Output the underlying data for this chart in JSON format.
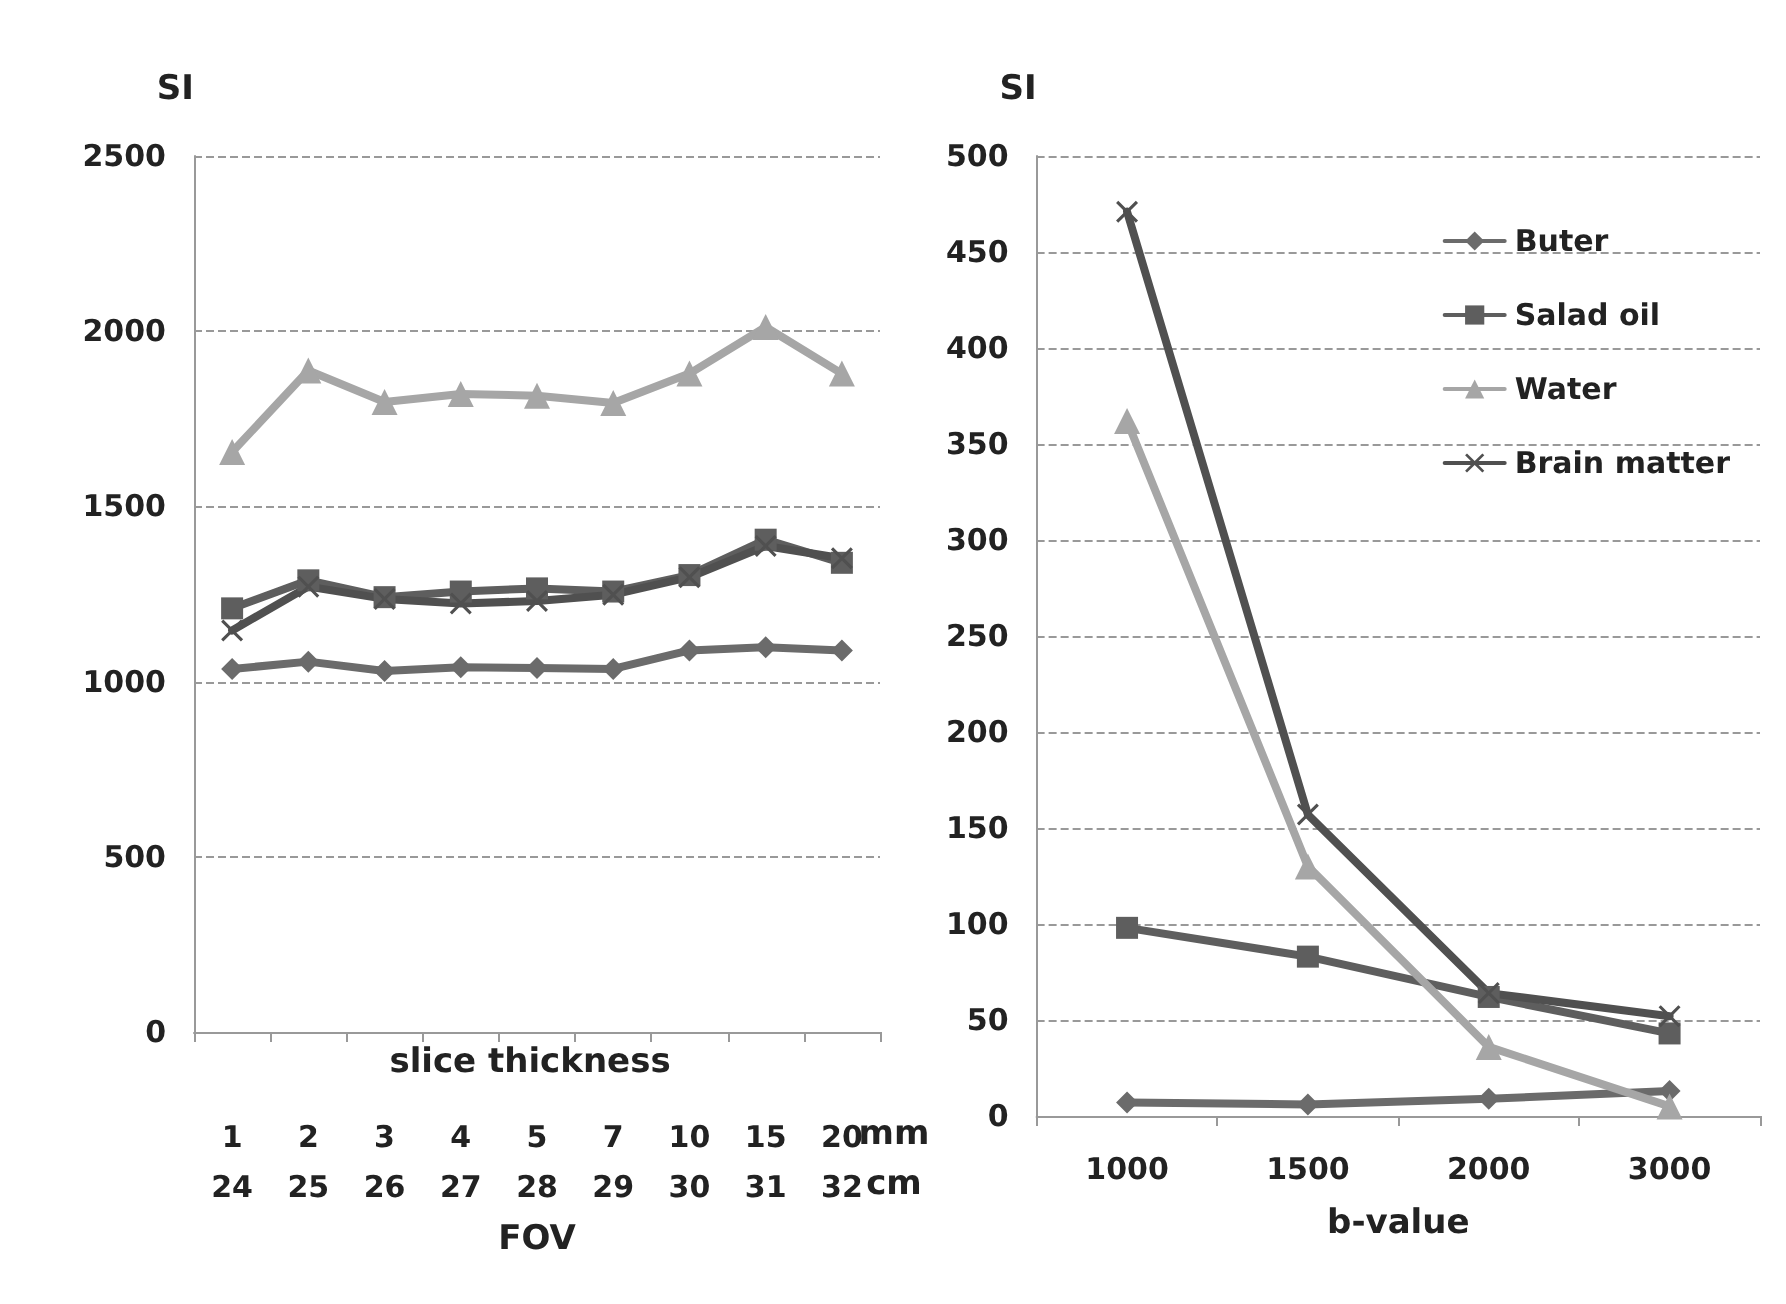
{
  "chart_data": [
    {
      "type": "line",
      "ylabel": "SI",
      "xlabel": "FOV",
      "annotations": [
        "slice thickness",
        "mm",
        "cm"
      ],
      "categories": [
        "1\n24",
        "2\n25",
        "3\n26",
        "4\n27",
        "5\n28",
        "7\n29",
        "10\n30",
        "15\n31",
        "20\n32"
      ],
      "series": [
        {
          "color": "#6b6b6b",
          "marker": "diamond",
          "values": [
            1036,
            1057,
            1030,
            1041,
            1039,
            1036,
            1089,
            1098,
            1089
          ]
        },
        {
          "color": "#5e5e5e",
          "marker": "square",
          "values": [
            1209,
            1289,
            1241,
            1257,
            1266,
            1257,
            1304,
            1405,
            1339
          ]
        },
        {
          "color": "#a6a6a6",
          "marker": "triangle",
          "values": [
            1655,
            1888,
            1798,
            1821,
            1816,
            1795,
            1879,
            2012,
            1879
          ]
        },
        {
          "color": "#505050",
          "marker": "cross",
          "values": [
            1146,
            1271,
            1236,
            1223,
            1230,
            1248,
            1298,
            1387,
            1352
          ]
        }
      ],
      "ylim": [
        0,
        2500
      ],
      "yticks": [
        0,
        500,
        1000,
        1500,
        2000,
        2500
      ],
      "grid": "y",
      "legend": false
    },
    {
      "type": "line",
      "ylabel": "SI",
      "xlabel": "b-value",
      "categories": [
        "1000",
        "1500",
        "2000",
        "3000"
      ],
      "series": [
        {
          "name": "Buter",
          "color": "#6b6b6b",
          "marker": "diamond",
          "values": [
            7,
            6,
            9,
            13
          ]
        },
        {
          "name": "Salad oil",
          "color": "#5e5e5e",
          "marker": "square",
          "values": [
            98,
            83,
            62,
            43
          ]
        },
        {
          "name": "Water",
          "color": "#a6a6a6",
          "marker": "triangle",
          "values": [
            362,
            130,
            36,
            5
          ]
        },
        {
          "name": "Brain matter",
          "color": "#505050",
          "marker": "cross",
          "values": [
            471,
            157,
            64,
            52
          ]
        }
      ],
      "ylim": [
        0,
        500
      ],
      "yticks": [
        0,
        50,
        100,
        150,
        200,
        250,
        300,
        350,
        400,
        450,
        500
      ],
      "grid": "y",
      "legend": "top right"
    }
  ]
}
